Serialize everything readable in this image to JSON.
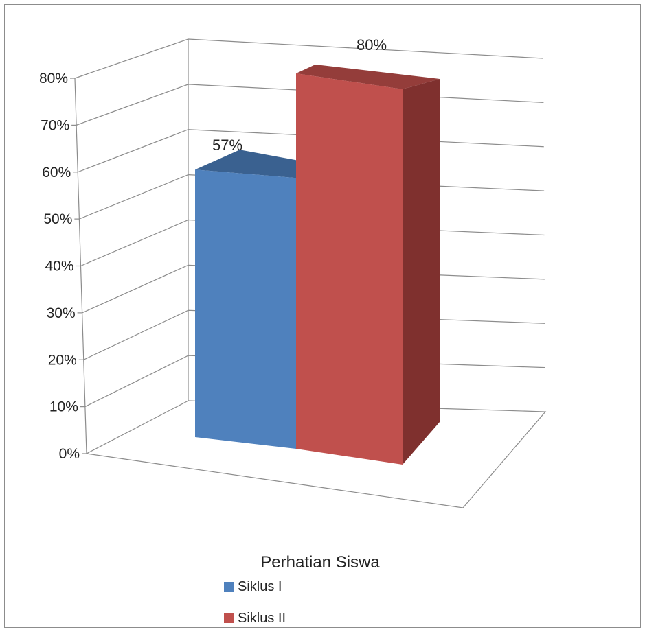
{
  "chart_data": {
    "type": "bar",
    "three_d": true,
    "categories": [
      "Perhatian Siswa"
    ],
    "series": [
      {
        "name": "Siklus I",
        "values": [
          0.57
        ],
        "data_label": "57%",
        "color": "#4f81bd",
        "top_color": "#3a6190",
        "side_color": "#385d8a"
      },
      {
        "name": "Siklus II",
        "values": [
          0.8
        ],
        "data_label": "80%",
        "color": "#c0504d",
        "top_color": "#943d3a",
        "side_color": "#7f302e"
      }
    ],
    "ylim": [
      0,
      0.8
    ],
    "y_ticks": [
      {
        "value": 0.0,
        "label": "0%"
      },
      {
        "value": 0.1,
        "label": "10%"
      },
      {
        "value": 0.2,
        "label": "20%"
      },
      {
        "value": 0.3,
        "label": "30%"
      },
      {
        "value": 0.4,
        "label": "40%"
      },
      {
        "value": 0.5,
        "label": "50%"
      },
      {
        "value": 0.6,
        "label": "60%"
      },
      {
        "value": 0.7,
        "label": "70%"
      },
      {
        "value": 0.8,
        "label": "80%"
      }
    ],
    "grid": true,
    "legend_position": "bottom-left",
    "title": "",
    "xlabel": "",
    "ylabel": ""
  }
}
